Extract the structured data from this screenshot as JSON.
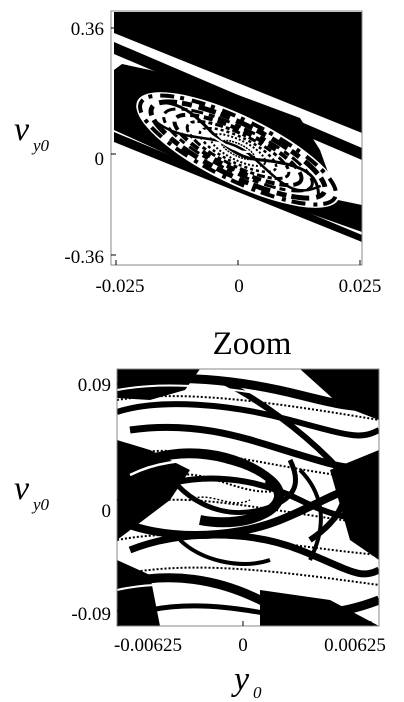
{
  "chart_data": [
    {
      "type": "heatmap",
      "title": "",
      "xlabel": "",
      "ylabel": "v",
      "ylabel_sub": "y0",
      "xlim": [
        -0.025,
        0.025
      ],
      "ylim": [
        -0.36,
        0.36
      ],
      "x_ticks": [
        "-0.025",
        "0",
        "0.025"
      ],
      "y_ticks": [
        "0.36",
        "0",
        "-0.36"
      ],
      "grid": false,
      "colors": {
        "basin_a": "#000000",
        "basin_b": "#ffffff"
      }
    },
    {
      "type": "heatmap",
      "title": "Zoom",
      "xlabel": "y",
      "xlabel_sub": "0",
      "ylabel": "v",
      "ylabel_sub": "y0",
      "xlim": [
        -0.00625,
        0.00625
      ],
      "ylim": [
        -0.09,
        0.09
      ],
      "x_ticks": [
        "-0.00625",
        "0",
        "0.00625"
      ],
      "y_ticks": [
        "0.09",
        "0",
        "-0.09"
      ],
      "grid": false,
      "colors": {
        "basin_a": "#000000",
        "basin_b": "#ffffff"
      }
    }
  ]
}
